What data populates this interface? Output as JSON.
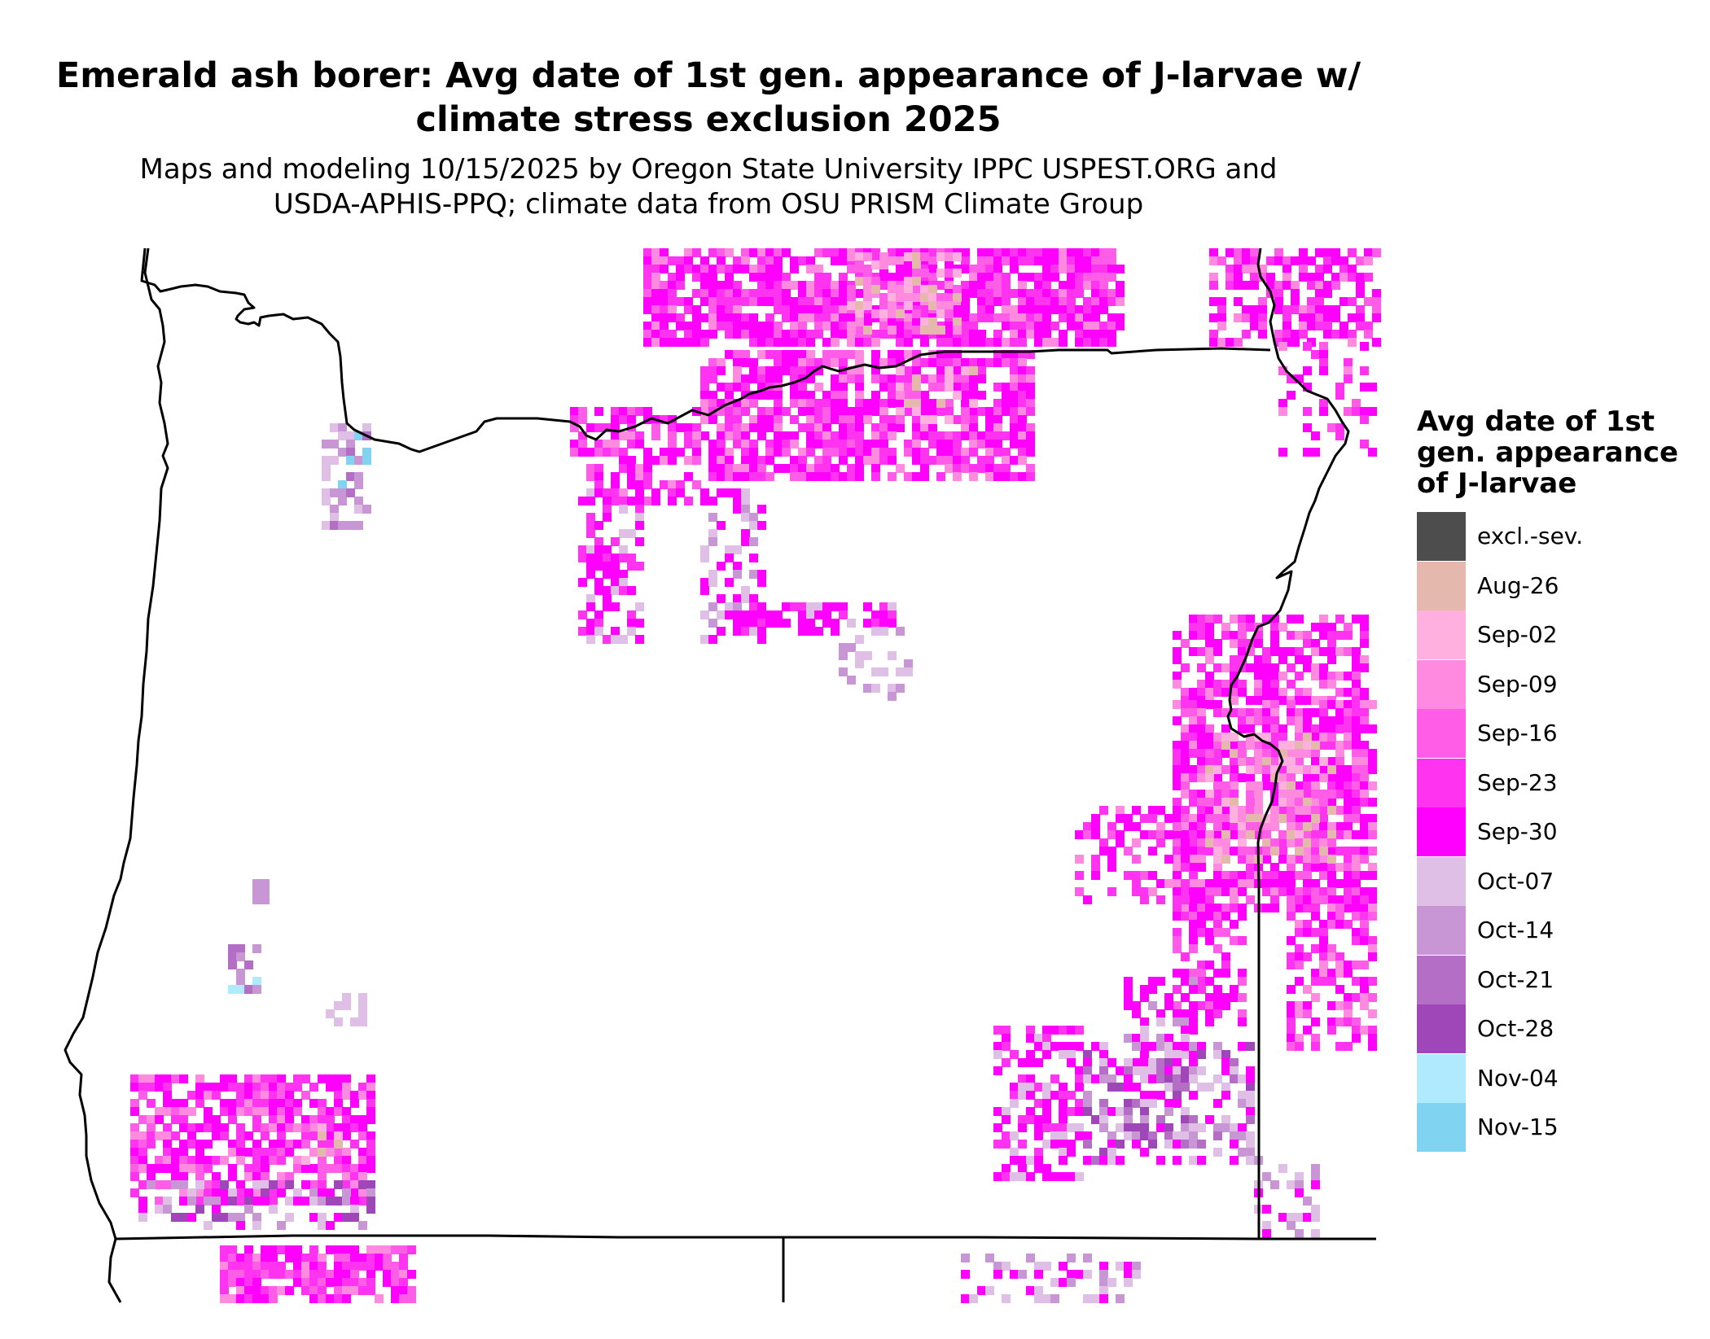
{
  "title": {
    "line1": "Emerald ash borer: Avg date of 1st gen. appearance of J-larvae w/",
    "line2": "climate stress exclusion 2025"
  },
  "subtitle": {
    "line1": "Maps and modeling 10/15/2025 by Oregon State University IPPC USPEST.ORG and",
    "line2": "USDA-APHIS-PPQ; climate data from OSU PRISM Climate Group"
  },
  "legend": {
    "title_lines": [
      "Avg date of 1st",
      "gen. appearance",
      "of J-larvae"
    ],
    "items": [
      {
        "label": "excl.-sev.",
        "color": "#4d4d4d"
      },
      {
        "label": "Aug-26",
        "color": "#e5b8ad"
      },
      {
        "label": "Sep-02",
        "color": "#ffb0de"
      },
      {
        "label": "Sep-09",
        "color": "#ff8ae0"
      },
      {
        "label": "Sep-16",
        "color": "#ff5ce8"
      },
      {
        "label": "Sep-23",
        "color": "#ff33f0"
      },
      {
        "label": "Sep-30",
        "color": "#ff00ff"
      },
      {
        "label": "Oct-07",
        "color": "#e0bfe6"
      },
      {
        "label": "Oct-14",
        "color": "#c896d4"
      },
      {
        "label": "Oct-21",
        "color": "#b46ec6"
      },
      {
        "label": "Oct-28",
        "color": "#9f46b8"
      },
      {
        "label": "Nov-04",
        "color": "#b0eaff"
      },
      {
        "label": "Nov-15",
        "color": "#80d4f2"
      }
    ]
  }
}
